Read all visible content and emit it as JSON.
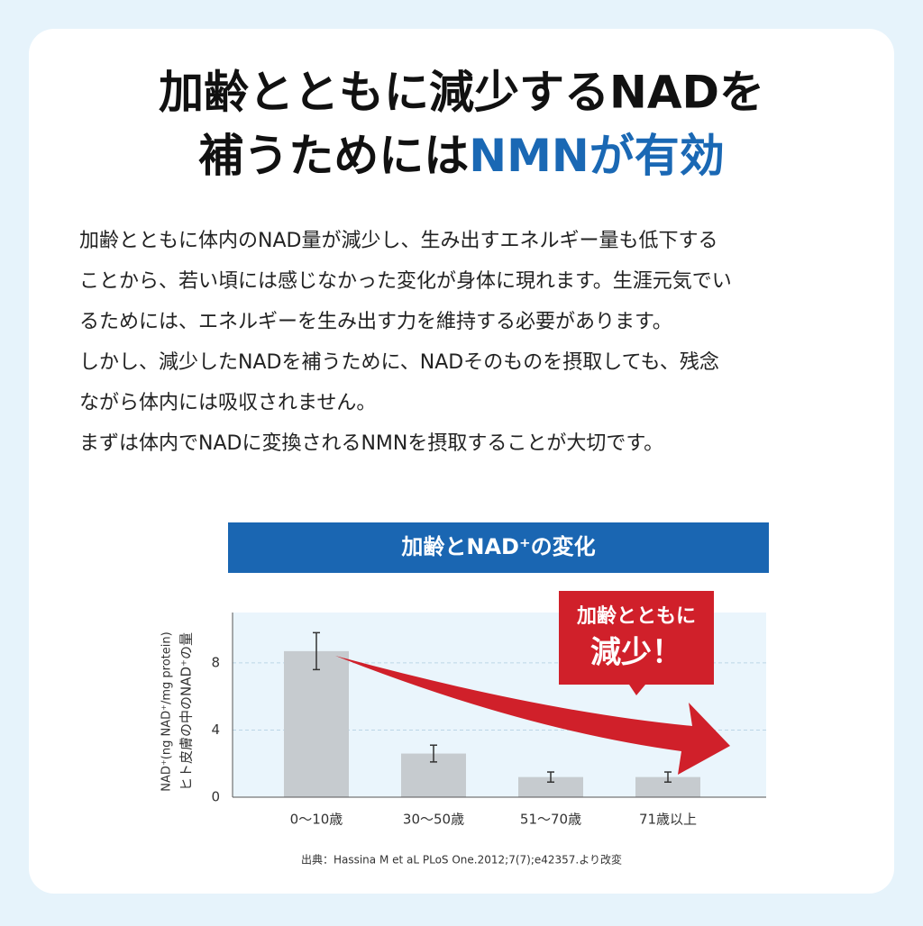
{
  "header": {
    "line1": "加齢とともに減少するNADを",
    "line2_a": "補うためには",
    "line2_b": "NMN",
    "line2_c": "が有効"
  },
  "body": {
    "lines": [
      "加齢とともに体内のNAD量が減少し、生み出すエネルギー量も低下する",
      "ことから、若い頃には感じなかった変化が身体に現れます。生涯元気でい",
      "るためには、エネルギーを生み出す力を維持する必要があります。",
      "しかし、減少したNADを補うために、NADそのものを摂取しても、残念",
      "ながら体内には吸収されません。",
      "まずは体内でNADに変換されるNMNを摂取することが大切です。"
    ]
  },
  "chart_data": {
    "type": "bar",
    "title": "加齢とNAD⁺の変化",
    "ylabel": [
      "NAD⁺(ng NAD⁺/mg protein)",
      "ヒト皮膚の中のNAD⁺の量"
    ],
    "categories": [
      "0〜10歳",
      "30〜50歳",
      "51〜70歳",
      "71歳以上"
    ],
    "values": [
      8.7,
      2.6,
      1.2,
      1.2
    ],
    "errors": [
      1.1,
      0.5,
      0.3,
      0.3
    ],
    "color": "#c6cbcf",
    "ylim": [
      0,
      11
    ],
    "yticks": [
      0,
      4,
      8
    ],
    "grid": true,
    "annotation": [
      "加齢とともに",
      "減少！"
    ],
    "source": "出典：Hassina M et aL PLoS One.2012;7(7);e42357.より改変"
  }
}
